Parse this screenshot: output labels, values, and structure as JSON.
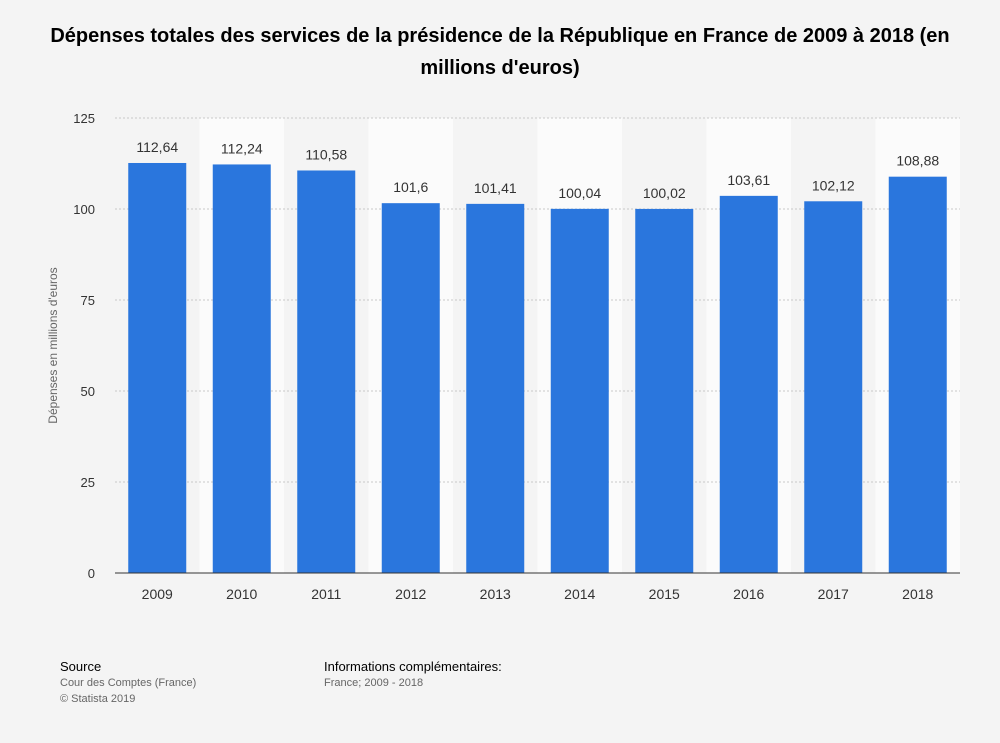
{
  "chart_data": {
    "type": "bar",
    "title": "Dépenses totales des services de la présidence de la République en France de 2009 à 2018 (en millions d'euros)",
    "xlabel": "",
    "ylabel": "Dépenses en millions d'euros",
    "categories": [
      "2009",
      "2010",
      "2011",
      "2012",
      "2013",
      "2014",
      "2015",
      "2016",
      "2017",
      "2018"
    ],
    "values": [
      112.64,
      112.24,
      110.58,
      101.6,
      101.41,
      100.04,
      100.02,
      103.61,
      102.12,
      108.88
    ],
    "value_labels": [
      "112,64",
      "112,24",
      "110,58",
      "101,6",
      "101,41",
      "100,04",
      "100,02",
      "103,61",
      "102,12",
      "108,88"
    ],
    "ylim": [
      0,
      125
    ],
    "yticks": [
      0,
      25,
      50,
      75,
      100,
      125
    ],
    "grid": true,
    "legend": "none",
    "bar_color": "#2a76dd"
  },
  "footer": {
    "source_label": "Source",
    "source_value": "Cour des Comptes (France)",
    "copyright": "© Statista 2019",
    "info_label": "Informations complémentaires:",
    "info_value": "France; 2009 - 2018"
  }
}
